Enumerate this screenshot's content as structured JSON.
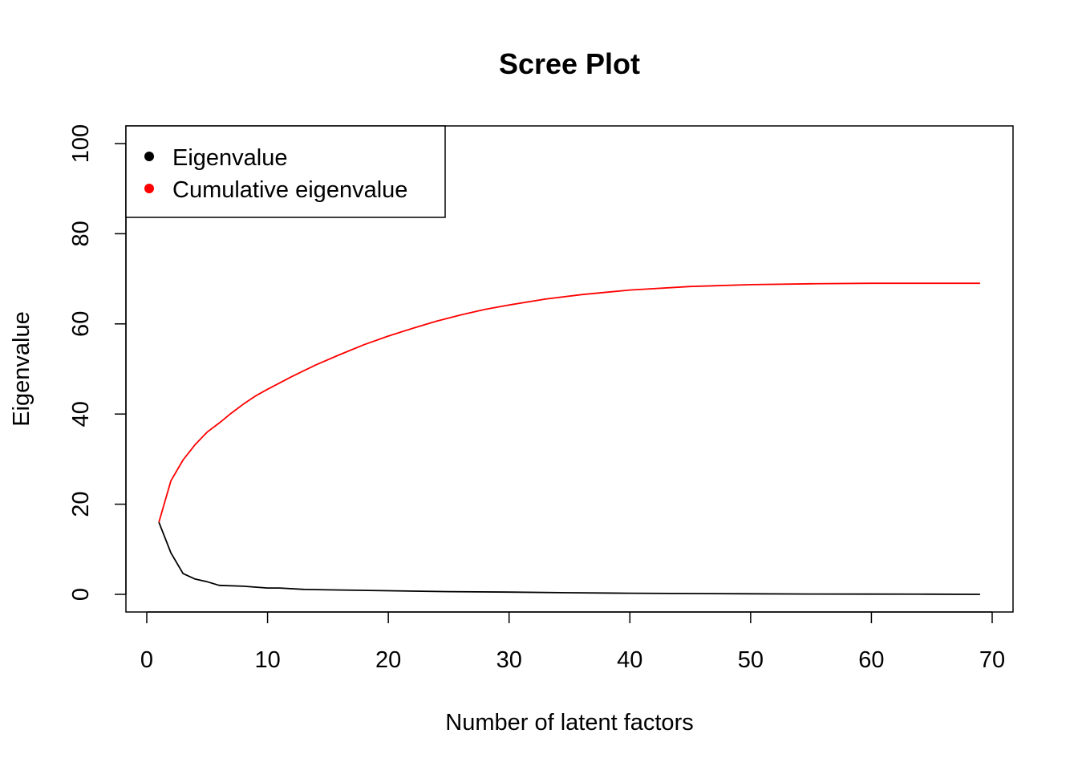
{
  "chart_data": {
    "type": "line",
    "title": "Scree Plot",
    "xlabel": "Number of latent factors",
    "ylabel": "Eigenvalue",
    "xlim": [
      0,
      70
    ],
    "ylim": [
      0,
      100
    ],
    "xticks": [
      0,
      10,
      20,
      30,
      40,
      50,
      60,
      70
    ],
    "yticks": [
      0,
      20,
      40,
      60,
      80,
      100
    ],
    "grid": false,
    "legend_position": "top-left",
    "series": [
      {
        "name": "Eigenvalue",
        "color": "#000000",
        "x": [
          1,
          2,
          3,
          4,
          5,
          6,
          8,
          10,
          11,
          13,
          15,
          20,
          25,
          30,
          35,
          40,
          45,
          50,
          55,
          60,
          65,
          69
        ],
        "y": [
          16.0,
          9.2,
          4.6,
          3.4,
          2.8,
          2.0,
          1.8,
          1.4,
          1.4,
          1.1,
          1.0,
          0.8,
          0.6,
          0.5,
          0.35,
          0.25,
          0.18,
          0.12,
          0.08,
          0.05,
          0.03,
          0.0
        ]
      },
      {
        "name": "Cumulative eigenvalue",
        "color": "#ff0000",
        "x": [
          1,
          2,
          3,
          4,
          5,
          6,
          7,
          8,
          9,
          10,
          12,
          14,
          16,
          18,
          20,
          22,
          24,
          26,
          28,
          30,
          33,
          36,
          40,
          45,
          50,
          55,
          60,
          65,
          69
        ],
        "y": [
          16.0,
          25.2,
          29.8,
          33.2,
          36.0,
          38.0,
          40.2,
          42.2,
          44.0,
          45.5,
          48.3,
          50.9,
          53.2,
          55.4,
          57.3,
          59.0,
          60.6,
          62.0,
          63.2,
          64.2,
          65.5,
          66.5,
          67.5,
          68.3,
          68.7,
          68.9,
          69.0,
          69.0,
          69.0
        ]
      }
    ]
  }
}
